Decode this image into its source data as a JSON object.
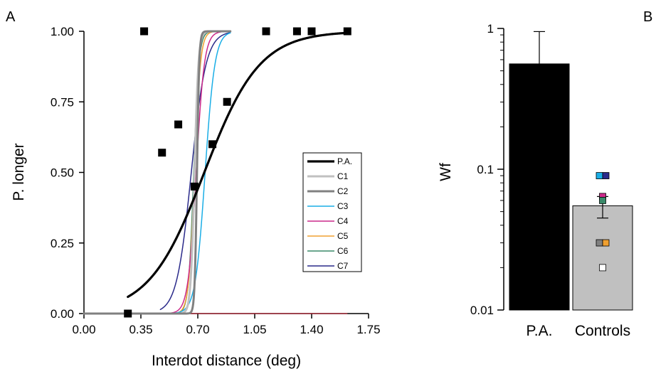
{
  "chart_data": [
    {
      "panel": "A",
      "type": "line",
      "xlabel": "Interdot distance (deg)",
      "ylabel": "P. longer",
      "xlim": [
        0.0,
        1.75
      ],
      "ylim": [
        0.0,
        1.0
      ],
      "x_ticks": [
        "0.00",
        "0.35",
        "0.70",
        "1.05",
        "1.40",
        "1.75"
      ],
      "x_tick_values": [
        0.0,
        0.35,
        0.7,
        1.05,
        1.4,
        1.75
      ],
      "y_ticks": [
        "0.00",
        "0.25",
        "0.50",
        "0.75",
        "1.00"
      ],
      "y_tick_values": [
        0.0,
        0.25,
        0.5,
        0.75,
        1.0
      ],
      "scatter": {
        "name": "P.A. data",
        "color": "#000000",
        "points": [
          [
            0.27,
            0.0
          ],
          [
            0.37,
            1.0
          ],
          [
            0.48,
            0.57
          ],
          [
            0.58,
            0.67
          ],
          [
            0.68,
            0.45
          ],
          [
            0.79,
            0.6
          ],
          [
            0.88,
            0.75
          ],
          [
            1.12,
            1.0
          ],
          [
            1.31,
            1.0
          ],
          [
            1.4,
            1.0
          ],
          [
            1.62,
            1.0
          ]
        ]
      },
      "legend_position": "right",
      "series": [
        {
          "name": "P.A.",
          "color": "#000000",
          "width": 3.2,
          "mu": 0.74,
          "s": 0.17,
          "x_range": [
            0.27,
            1.62
          ]
        },
        {
          "name": "C1",
          "color": "#c0c0c0",
          "width": 3,
          "mu": 0.68,
          "s": 0.012,
          "x_range": [
            0.0,
            0.9
          ]
        },
        {
          "name": "C2",
          "color": "#808080",
          "width": 3,
          "mu": 0.695,
          "s": 0.007,
          "x_range": [
            0.0,
            0.9
          ]
        },
        {
          "name": "C3",
          "color": "#1aaee6",
          "width": 1.5,
          "mu": 0.745,
          "s": 0.03,
          "x_range": [
            0.0,
            0.9
          ]
        },
        {
          "name": "C4",
          "color": "#cc2a8a",
          "width": 1.5,
          "mu": 0.69,
          "s": 0.025,
          "x_range": [
            0.0,
            0.9
          ]
        },
        {
          "name": "C5",
          "color": "#f0a030",
          "width": 1.5,
          "mu": 0.68,
          "s": 0.018,
          "x_range": [
            0.0,
            0.9
          ]
        },
        {
          "name": "C6",
          "color": "#3a8a6a",
          "width": 1.5,
          "mu": 0.675,
          "s": 0.016,
          "x_range": [
            0.0,
            0.9
          ]
        },
        {
          "name": "C7",
          "color": "#2a2a8a",
          "width": 1.5,
          "mu": 0.66,
          "s": 0.045,
          "x_range": [
            0.47,
            0.9
          ]
        }
      ],
      "baseline_line": {
        "color": "#b02030",
        "y": 0.0,
        "x_range": [
          0.0,
          1.62
        ]
      }
    },
    {
      "panel": "B",
      "type": "bar",
      "ylabel": "Wf",
      "yscale": "log",
      "ylim": [
        0.01,
        1
      ],
      "y_ticks": [
        "0.01",
        "0.1",
        "1"
      ],
      "y_tick_values": [
        0.01,
        0.1,
        1
      ],
      "categories": [
        "P.A.",
        "Controls"
      ],
      "values": [
        0.56,
        0.055
      ],
      "error_upper": [
        0.95,
        0.064
      ],
      "error_lower": [
        null,
        0.045
      ],
      "bar_colors": [
        "#000000",
        "#c0c0c0"
      ],
      "control_points": [
        {
          "name": "C1",
          "value": 0.09,
          "color": "#1aaee6"
        },
        {
          "name": "C2",
          "value": 0.09,
          "color": "#2a2a8a"
        },
        {
          "name": "C3",
          "value": 0.064,
          "color": "#cc2a8a"
        },
        {
          "name": "C4",
          "value": 0.06,
          "color": "#3a8a6a"
        },
        {
          "name": "C5",
          "value": 0.03,
          "color": "#808080"
        },
        {
          "name": "C6",
          "value": 0.03,
          "color": "#f0a030"
        },
        {
          "name": "C7",
          "value": 0.02,
          "color": "#ffffff"
        }
      ]
    }
  ],
  "panel_letters": [
    "A",
    "B"
  ]
}
